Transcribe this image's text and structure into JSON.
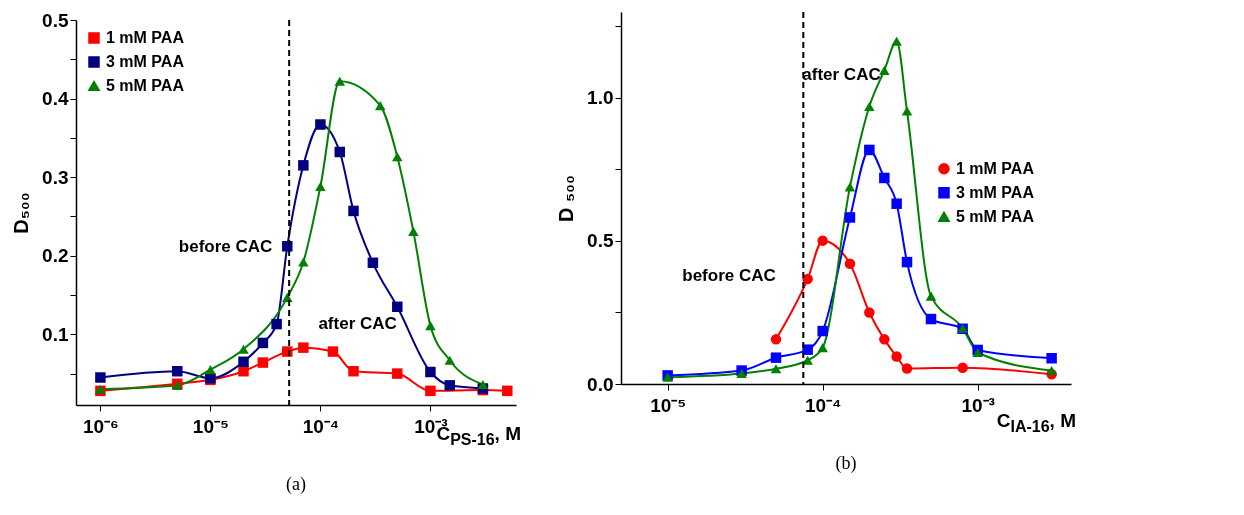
{
  "chart_data": [
    {
      "type": "line",
      "title": "(a)",
      "xlabel": "C$_{PS-16}$, M",
      "ylabel": "D₅₀₀",
      "log": "x",
      "legend": "top left",
      "grid": false,
      "xlim": [
        6e-07,
        0.006
      ],
      "ylim": [
        0.01,
        0.5
      ],
      "xticks": [
        {
          "value": 1e-06,
          "label": "10⁻⁶"
        },
        {
          "value": 1e-05,
          "label": "10⁻⁵"
        },
        {
          "value": 0.0001,
          "label": "10⁻⁴"
        },
        {
          "value": 0.001,
          "label": "10⁻³"
        }
      ],
      "yticks": [
        {
          "value": 0.05,
          "label": null
        },
        0.1,
        {
          "value": 0.15,
          "label": null
        },
        0.2,
        {
          "value": 0.25,
          "label": null
        },
        0.3,
        {
          "value": 0.35,
          "label": null
        },
        0.4,
        {
          "value": 0.45,
          "label": null
        },
        0.5
      ],
      "ref_lines": [
        {
          "axis": "x",
          "value": 5.2e-05,
          "color": "#000000",
          "line_style": "dashed"
        }
      ],
      "annotations": [
        "before CAC",
        "after CAC"
      ],
      "series": [
        {
          "name": "1 mM PAA",
          "color": "#ff0000",
          "marker": "square",
          "x": [
            1e-06,
            5e-06,
            1e-05,
            2e-05,
            3e-05,
            5e-05,
            7e-05,
            0.00013,
            0.0002,
            0.0005,
            0.001,
            0.003,
            0.005
          ],
          "values": [
            0.028,
            0.037,
            0.042,
            0.053,
            0.064,
            0.078,
            0.083,
            0.078,
            0.053,
            0.05,
            0.028,
            0.029,
            0.028
          ]
        },
        {
          "name": "3 mM PAA",
          "color": "#000080",
          "marker": "square",
          "x": [
            1e-06,
            5e-06,
            1e-05,
            2e-05,
            3e-05,
            4e-05,
            5e-05,
            7e-05,
            0.0001,
            0.00015,
            0.0002,
            0.0003,
            0.0005,
            0.001,
            0.0015,
            0.003
          ],
          "values": [
            0.045,
            0.053,
            0.044,
            0.065,
            0.089,
            0.113,
            0.212,
            0.315,
            0.367,
            0.332,
            0.257,
            0.191,
            0.135,
            0.052,
            0.035,
            0.031
          ]
        },
        {
          "name": "5 mM PAA",
          "color": "#008000",
          "marker": "triangle",
          "x": [
            1e-06,
            5e-06,
            1e-05,
            2e-05,
            5e-05,
            7e-05,
            0.0001,
            0.00015,
            0.00035,
            0.0005,
            0.0007,
            0.001,
            0.0015,
            0.003
          ],
          "values": [
            0.03,
            0.035,
            0.055,
            0.081,
            0.147,
            0.192,
            0.288,
            0.422,
            0.391,
            0.326,
            0.231,
            0.111,
            0.067,
            0.036
          ]
        }
      ]
    },
    {
      "type": "line",
      "title": "(b)",
      "xlabel": "C$_{IA-16}$, M",
      "ylabel": "D ₅₀₀",
      "log": "x",
      "legend": "right",
      "grid": false,
      "xlim": [
        5e-06,
        0.004
      ],
      "ylim": [
        0,
        1.3
      ],
      "xticks": [
        {
          "value": 1e-05,
          "label": "10⁻⁵"
        },
        {
          "value": 0.0001,
          "label": "10⁻⁴"
        },
        {
          "value": 0.001,
          "label": "10⁻³"
        }
      ],
      "yticks": [
        {
          "value": 0,
          "label": "0.0"
        },
        {
          "value": 0.25,
          "label": null
        },
        {
          "value": 0.5,
          "label": "0.5"
        },
        {
          "value": 0.75,
          "label": null
        },
        {
          "value": 1,
          "label": "1.0"
        },
        {
          "value": 1.25,
          "label": null
        }
      ],
      "ref_lines": [
        {
          "axis": "x",
          "value": 7.5e-05,
          "color": "#000000",
          "line_style": "dashed"
        }
      ],
      "annotations": [
        "before CAC",
        "after CAC"
      ],
      "series": [
        {
          "name": "1 mM PAA",
          "color": "#ff0000",
          "marker": "circle",
          "x": [
            5e-05,
            8e-05,
            0.0001,
            0.00015,
            0.0002,
            0.00025,
            0.0003,
            0.00035,
            0.0008,
            0.003
          ],
          "values": [
            0.156,
            0.367,
            0.501,
            0.42,
            0.25,
            0.156,
            0.096,
            0.054,
            0.057,
            0.034
          ]
        },
        {
          "name": "3 mM PAA",
          "color": "#0000ff",
          "marker": "square",
          "x": [
            1e-05,
            3e-05,
            5e-05,
            8e-05,
            0.0001,
            0.00015,
            0.0002,
            0.00025,
            0.0003,
            0.00035,
            0.0005,
            0.0008,
            0.001,
            0.003
          ],
          "values": [
            0.03,
            0.047,
            0.092,
            0.12,
            0.185,
            0.582,
            0.818,
            0.72,
            0.63,
            0.426,
            0.227,
            0.193,
            0.119,
            0.09
          ]
        },
        {
          "name": "5 mM PAA",
          "color": "#008000",
          "marker": "triangle",
          "x": [
            1e-05,
            3e-05,
            5e-05,
            8e-05,
            0.0001,
            0.00015,
            0.0002,
            0.00025,
            0.0003,
            0.00035,
            0.0005,
            0.0008,
            0.001,
            0.003
          ],
          "values": [
            0.024,
            0.037,
            0.053,
            0.083,
            0.127,
            0.689,
            0.97,
            1.096,
            1.198,
            0.954,
            0.307,
            0.195,
            0.11,
            0.047
          ]
        }
      ]
    }
  ]
}
